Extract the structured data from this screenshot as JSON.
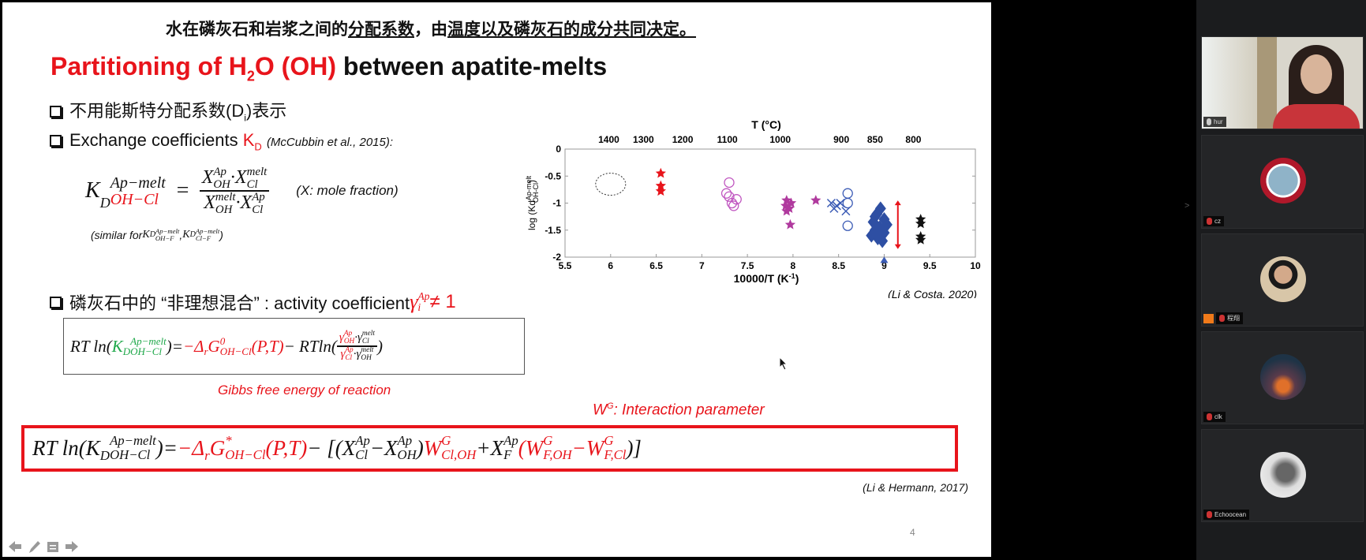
{
  "slide": {
    "top_line": {
      "a": "水在磷灰石和岩浆之间的",
      "b": "分配系数",
      "c": "，由",
      "d": "温度以及磷灰石的成分",
      "e": "共同决定。"
    },
    "title": {
      "red1": "Partitioning of H",
      "sub": "2",
      "red2": "O (OH)",
      "black": " between apatite-melts"
    },
    "bullet1": {
      "a": "不用能斯特分配系数(D",
      "sub": "i",
      "b": ")表示"
    },
    "bullet2": {
      "a": "Exchange coefficients ",
      "kd": "K",
      "kd_sub": "D",
      "ref": "(McCubbin et al., 2015):"
    },
    "kd_def": {
      "K": "K",
      "D": "D",
      "sup": "Ap−melt",
      "sub": "OH−Cl",
      "eq": "=",
      "x": "X",
      "ap": "Ap",
      "melt": "melt",
      "oh": "OH",
      "cl": "Cl",
      "dot": "·",
      "note": "(X: mole fraction)"
    },
    "similar": {
      "a": "(similar for ",
      "K": "K",
      "D": "D",
      "sup": "Ap−melt",
      "sub1": "OH−F",
      "sep": ", ",
      "sub2": "Cl−F",
      "b": ")"
    },
    "bullet3": {
      "a": "磷灰石中的 “非理想混合” : activity coefficient ",
      "gamma": "γ",
      "sup": "Ap",
      "sub": "i",
      "neq": " ≠ 1"
    },
    "eq1": {
      "lhs": "RT ln(",
      "K": "K",
      "D": "D",
      "sup": "Ap−melt",
      "sub": "OH−Cl",
      "close": ")",
      "eq": " = ",
      "rhs1": "−Δ",
      "r": "r",
      "G": "G",
      "g_sup": "0",
      "g_sub": "OH−Cl",
      "pt": "(P,T)",
      "minus": " − RTln(",
      "gam": "γ",
      "ap": "Ap",
      "melt": "melt",
      "oh": "OH",
      "cl": "Cl",
      "dot": "·",
      "end": ")"
    },
    "gibbs_label": "Gibbs free energy of reaction",
    "wg_label": {
      "w": "W",
      "sup": "G",
      "rest": ": Interaction parameter"
    },
    "eq2": {
      "lhs": "RT ln(",
      "K": "K",
      "D": "D",
      "sup": "Ap−melt",
      "sub": "OH−Cl",
      "close": ")",
      "eq": " = ",
      "rhs1": "−Δ",
      "r": "r",
      "G": "G",
      "g_sup": "*",
      "g_sub": "OH−Cl",
      "pt": "(P,T)",
      "br": " − [(",
      "X": "X",
      "ap": "Ap",
      "cl": "Cl",
      "minus": " − ",
      "oh": "OH",
      "p1": ") ",
      "W": "W",
      "wsup": "G",
      "w1": "Cl,OH",
      "plus": " + ",
      "F": "F",
      "op": "(",
      "w2": "F,OH",
      "w3": "F,Cl",
      "end": ")]"
    },
    "ref_hermann": "(Li & Hermann, 2017)",
    "page_number": "4"
  },
  "chart_data": {
    "type": "scatter",
    "title": "T (°C)",
    "xlabel": "10000/T (K-1)",
    "ylabel": "log (Kd Ap-melt OH-Cl)",
    "xlim": [
      5.5,
      10
    ],
    "ylim": [
      -2,
      0
    ],
    "xticks": [
      "5.5",
      "6",
      "6.5",
      "7",
      "7.5",
      "8",
      "8.5",
      "9",
      "9.5",
      "10"
    ],
    "yticks": [
      "0",
      "-0.5",
      "-1",
      "-1.5",
      "-2"
    ],
    "top_ticks": [
      {
        "label": "1400",
        "x": 5.98
      },
      {
        "label": "1300",
        "x": 6.36
      },
      {
        "label": "1200",
        "x": 6.79
      },
      {
        "label": "1100",
        "x": 7.28
      },
      {
        "label": "1000",
        "x": 7.86
      },
      {
        "label": "900",
        "x": 8.53
      },
      {
        "label": "850",
        "x": 8.9
      },
      {
        "label": "800",
        "x": 9.32
      }
    ],
    "series": [
      {
        "name": "dashed-range",
        "marker": "ellipse",
        "color": "#333333",
        "points": [
          [
            6.0,
            -0.65
          ]
        ]
      },
      {
        "name": "red-stars",
        "marker": "star",
        "color": "#e8141b",
        "points": [
          [
            6.55,
            -0.45
          ],
          [
            6.55,
            -0.68
          ],
          [
            6.55,
            -0.78
          ]
        ]
      },
      {
        "name": "magenta-circles",
        "marker": "circle",
        "color": "#c056c0",
        "points": [
          [
            7.3,
            -0.62
          ],
          [
            7.27,
            -0.82
          ],
          [
            7.3,
            -0.88
          ],
          [
            7.38,
            -0.93
          ],
          [
            7.33,
            -1.0
          ],
          [
            7.35,
            -1.05
          ]
        ]
      },
      {
        "name": "magenta-stars",
        "marker": "star",
        "color": "#b03a9e",
        "points": [
          [
            7.93,
            -0.95
          ],
          [
            7.98,
            -1.0
          ],
          [
            7.92,
            -1.05
          ],
          [
            7.96,
            -1.1
          ],
          [
            7.93,
            -1.15
          ],
          [
            7.97,
            -1.4
          ],
          [
            8.25,
            -0.95
          ]
        ]
      },
      {
        "name": "blue-crosses",
        "marker": "cross",
        "color": "#3b5bb5",
        "points": [
          [
            8.42,
            -1.0
          ],
          [
            8.48,
            -1.05
          ],
          [
            8.52,
            -1.0
          ],
          [
            8.45,
            -1.1
          ],
          [
            8.58,
            -1.15
          ]
        ]
      },
      {
        "name": "blue-circles",
        "marker": "circle",
        "color": "#3b5bb5",
        "points": [
          [
            8.6,
            -0.82
          ],
          [
            8.6,
            -1.0
          ],
          [
            8.6,
            -1.42
          ]
        ]
      },
      {
        "name": "blue-diamonds",
        "marker": "diamond",
        "color": "#2e4fa3",
        "points": [
          [
            8.88,
            -1.35
          ],
          [
            8.92,
            -1.2
          ],
          [
            8.96,
            -1.1
          ],
          [
            8.9,
            -1.5
          ],
          [
            8.95,
            -1.45
          ],
          [
            9.0,
            -1.3
          ],
          [
            8.86,
            -1.6
          ],
          [
            8.93,
            -1.65
          ],
          [
            9.0,
            -1.55
          ],
          [
            8.98,
            -1.7
          ],
          [
            9.03,
            -1.4
          ],
          [
            8.9,
            -1.25
          ]
        ]
      },
      {
        "name": "black-stars",
        "marker": "star",
        "color": "#111111",
        "points": [
          [
            9.4,
            -1.3
          ],
          [
            9.4,
            -1.38
          ],
          [
            9.4,
            -1.62
          ],
          [
            9.4,
            -1.68
          ]
        ]
      },
      {
        "name": "blue-triangle",
        "marker": "triangle",
        "color": "#3b5bb5",
        "points": [
          [
            9.0,
            -2.05
          ]
        ]
      }
    ],
    "range_arrow": {
      "x": 9.15,
      "y_from": -0.95,
      "y_to": -1.85,
      "color": "#e8141b"
    },
    "citation": "(Li & Costa, 2020)"
  },
  "sidebar": {
    "participants": [
      {
        "name": "hur"
      },
      {
        "name": "cz"
      },
      {
        "name": "程翔"
      },
      {
        "name": "clk"
      },
      {
        "name": "Echoocean"
      }
    ],
    "collapse_arrow": ">"
  }
}
